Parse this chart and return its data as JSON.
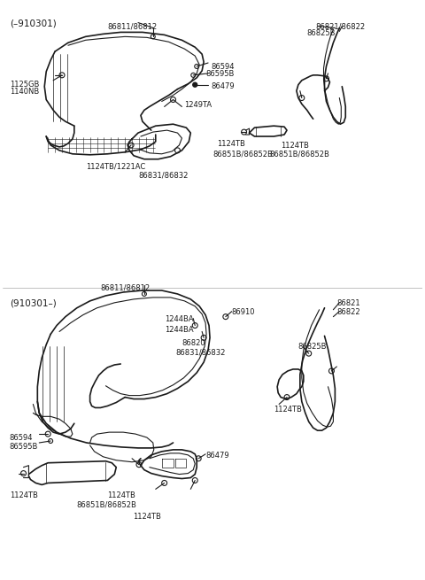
{
  "bg_color": "#ffffff",
  "line_color": "#1a1a1a",
  "text_color": "#1a1a1a",
  "fig_w": 4.8,
  "fig_h": 6.55,
  "dpi": 100,
  "labels": {
    "top_section_header": "(–910301)",
    "bottom_section_header": "(910301–)",
    "top_arch_bolt": "86811/86812",
    "top_left1": "1125GB",
    "top_left2": "1140NB",
    "top_mid1": "86594",
    "top_mid2": "86595B",
    "top_mid3": "86479",
    "top_mid4": "1249TA",
    "top_bot1": "1124TB/1221AC",
    "top_bot2": "86831/86832",
    "top_r1": "86821/86822",
    "top_r2": "86825B",
    "top_mid_r1": "1124TB",
    "top_mid_r2": "86851B/86852B",
    "bot_arch_bolt": "86811/86812",
    "bot_left1": "86594",
    "bot_left2": "86595B",
    "bot_mid1": "1244BA",
    "bot_mid2": "1244BA",
    "bot_mid3": "86910",
    "bot_mid4": "86820",
    "bot_mid5": "86831/86832",
    "bot_r1": "86821",
    "bot_r2": "86822",
    "bot_r3": "86825B",
    "bot_r4": "1124TB",
    "bot_bl1": "1124TB",
    "bot_bl2": "1124TB",
    "bot_bl3": "86851B/86852B",
    "bot_bl4": "86479",
    "bot_bl5": "1124TB"
  }
}
